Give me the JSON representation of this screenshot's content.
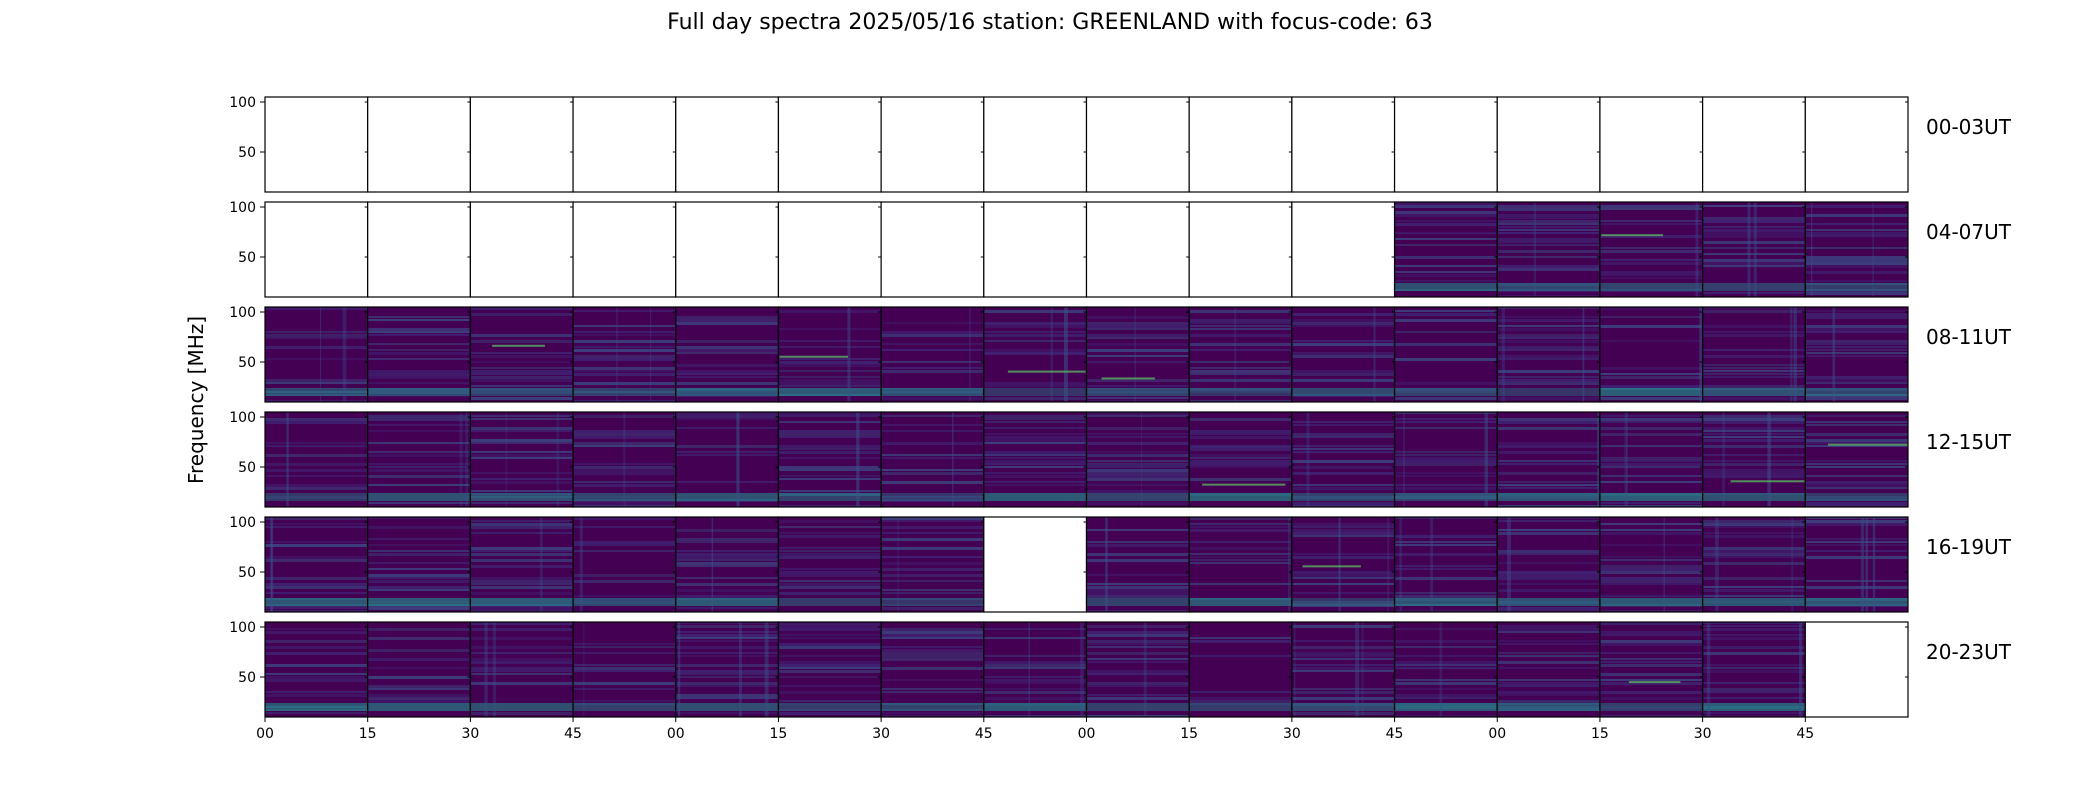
{
  "chart_data": {
    "type": "heatmap",
    "title": "Full day spectra 2025/05/16 station: GREENLAND with focus-code: 63",
    "ylabel": "Frequency [MHz]",
    "xlabel": "",
    "yticks": [
      50,
      100
    ],
    "ylim": [
      10,
      105
    ],
    "xticks": [
      "00",
      "15",
      "30",
      "45",
      "00",
      "15",
      "30",
      "45",
      "00",
      "15",
      "30",
      "45",
      "00",
      "15",
      "30",
      "45"
    ],
    "colormap": [
      "#440154",
      "#3b528b",
      "#21918c",
      "#5ec962",
      "#fde725"
    ],
    "panels_per_row": 16,
    "minutes_per_panel": 15,
    "rows": [
      {
        "label": "00-03UT",
        "has_data": [
          0,
          0,
          0,
          0,
          0,
          0,
          0,
          0,
          0,
          0,
          0,
          0,
          0,
          0,
          0,
          0
        ]
      },
      {
        "label": "04-07UT",
        "has_data": [
          0,
          0,
          0,
          0,
          0,
          0,
          0,
          0,
          0,
          0,
          0,
          1,
          1,
          1,
          1,
          1
        ]
      },
      {
        "label": "08-11UT",
        "has_data": [
          1,
          1,
          1,
          1,
          1,
          1,
          1,
          1,
          1,
          1,
          1,
          1,
          1,
          1,
          1,
          1
        ]
      },
      {
        "label": "12-15UT",
        "has_data": [
          1,
          1,
          1,
          1,
          1,
          1,
          1,
          1,
          1,
          1,
          1,
          1,
          1,
          1,
          1,
          1
        ]
      },
      {
        "label": "16-19UT",
        "has_data": [
          1,
          1,
          1,
          1,
          1,
          1,
          1,
          0,
          1,
          1,
          1,
          1,
          1,
          1,
          1,
          1
        ]
      },
      {
        "label": "20-23UT",
        "has_data": [
          1,
          1,
          1,
          1,
          1,
          1,
          1,
          1,
          1,
          1,
          1,
          1,
          1,
          1,
          1,
          0
        ]
      }
    ]
  }
}
